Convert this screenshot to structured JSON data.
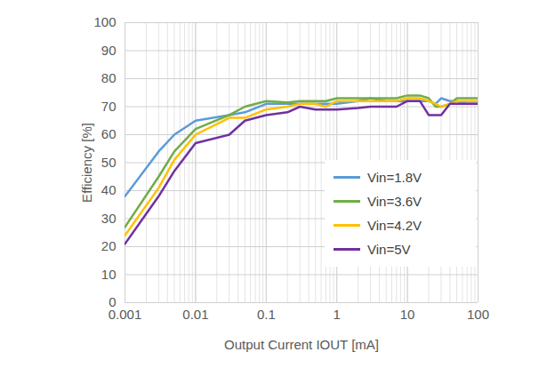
{
  "chart_data": {
    "type": "line",
    "x_label": "Output Current IOUT [mA]",
    "y_label": "Efficiency [%]",
    "x": [
      0.001,
      0.003,
      0.005,
      0.01,
      0.03,
      0.05,
      0.1,
      0.2,
      0.3,
      0.5,
      0.7,
      1,
      2,
      3,
      5,
      7,
      10,
      15,
      20,
      25,
      30,
      40,
      50,
      70,
      100
    ],
    "series": [
      {
        "name": "Vin=1.8V",
        "color": "#5b9bd5",
        "values": [
          38,
          54,
          60,
          65,
          67,
          68,
          71,
          71,
          71,
          71,
          71,
          71,
          72,
          73,
          72,
          72,
          72,
          72,
          72,
          71,
          73,
          72,
          72,
          71,
          71
        ]
      },
      {
        "name": "Vin=3.6V",
        "color": "#70ad47",
        "values": [
          27,
          45,
          54,
          62,
          67,
          70,
          72,
          71.5,
          72,
          72,
          72,
          73,
          73,
          73,
          73,
          73,
          74,
          74,
          73,
          70,
          70,
          71,
          73,
          73,
          73
        ]
      },
      {
        "name": "Vin=4.2V",
        "color": "#ffc000",
        "values": [
          24,
          41,
          51,
          60,
          66,
          66,
          69,
          70,
          71,
          71,
          70,
          72,
          72,
          72,
          72,
          72,
          73,
          73,
          72,
          71,
          70,
          71,
          72,
          72,
          72
        ]
      },
      {
        "name": "Vin=5V",
        "color": "#7030a0",
        "values": [
          21,
          38,
          47,
          57,
          60,
          65,
          67,
          68,
          70,
          69,
          69,
          69,
          69.5,
          70,
          70,
          70,
          72,
          72,
          67,
          67,
          67,
          71,
          71,
          71,
          71
        ]
      }
    ],
    "xlim": [
      0.001,
      100
    ],
    "xticks": [
      0.001,
      0.01,
      0.1,
      1,
      10,
      100
    ],
    "ylim": [
      0,
      100
    ],
    "yticks": [
      0,
      10,
      20,
      30,
      40,
      50,
      60,
      70,
      80,
      90,
      100
    ],
    "log": "x",
    "grid": true,
    "legend": "lower right"
  }
}
